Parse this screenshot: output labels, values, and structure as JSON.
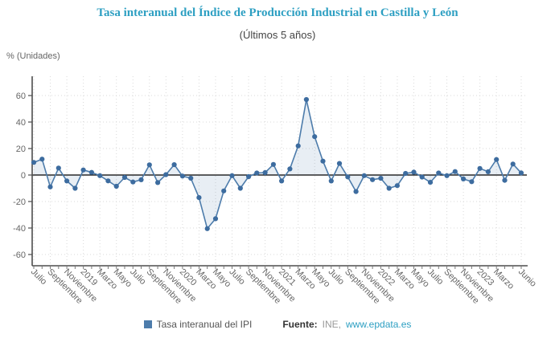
{
  "header": {
    "title": "Tasa interanual del Índice de Producción Industrial en Castilla y León",
    "subtitle": "(Últimos 5 años)"
  },
  "y_axis_unit_label": "% (Unidades)",
  "legend": {
    "series_label": "Tasa interanual del IPI"
  },
  "footer": {
    "source_label": "Fuente:",
    "source_name": "INE,",
    "source_link": "www.epdata.es"
  },
  "colors": {
    "title": "#2d9fc2",
    "subtitle": "#444444",
    "series_line": "#4d7cab",
    "series_point": "#3d6c9f",
    "area_fill": "rgba(69,114,167,0.12)",
    "grid": "#d9d9d9",
    "axis": "#4d4d4d",
    "zero_line": "#000000",
    "tick_text": "#666666",
    "link": "#2d9fc2"
  },
  "chart_data": {
    "type": "area",
    "title": "Tasa interanual del Índice de Producción Industrial en Castilla y León",
    "subtitle": "(Últimos 5 años)",
    "xlabel": "",
    "ylabel": "% (Unidades)",
    "ylim": [
      -70,
      75
    ],
    "y_ticks": [
      60,
      40,
      20,
      0,
      -20,
      -40,
      -60
    ],
    "grid": "dotted",
    "legend_position": "bottom",
    "categories": [
      "Julio 2018",
      "Agosto 2018",
      "Septiembre 2018",
      "Octubre 2018",
      "Noviembre 2018",
      "Diciembre 2018",
      "Enero 2019",
      "Febrero 2019",
      "Marzo 2019",
      "Abril 2019",
      "Mayo 2019",
      "Junio 2019",
      "Julio 2019",
      "Agosto 2019",
      "Septiembre 2019",
      "Octubre 2019",
      "Noviembre 2019",
      "Diciembre 2019",
      "Enero 2020",
      "Febrero 2020",
      "Marzo 2020",
      "Abril 2020",
      "Mayo 2020",
      "Junio 2020",
      "Julio 2020",
      "Agosto 2020",
      "Septiembre 2020",
      "Octubre 2020",
      "Noviembre 2020",
      "Diciembre 2020",
      "Enero 2021",
      "Febrero 2021",
      "Marzo 2021",
      "Abril 2021",
      "Mayo 2021",
      "Junio 2021",
      "Julio 2021",
      "Agosto 2021",
      "Septiembre 2021",
      "Octubre 2021",
      "Noviembre 2021",
      "Diciembre 2021",
      "Enero 2022",
      "Febrero 2022",
      "Marzo 2022",
      "Abril 2022",
      "Mayo 2022",
      "Junio 2022",
      "Julio 2022",
      "Agosto 2022",
      "Septiembre 2022",
      "Octubre 2022",
      "Noviembre 2022",
      "Diciembre 2022",
      "Enero 2023",
      "Febrero 2023",
      "Marzo 2023",
      "Abril 2023",
      "Mayo 2023",
      "Junio 2023"
    ],
    "series": [
      {
        "name": "Tasa interanual del IPI",
        "values": [
          9.5,
          12,
          -9,
          5.3,
          -4.5,
          -10,
          3.8,
          2,
          -0.5,
          -4.4,
          -8.5,
          -1.8,
          -5.3,
          -3.6,
          7.7,
          -5.7,
          0.3,
          7.8,
          -0.8,
          -2.4,
          -17,
          -40.5,
          -33,
          -12,
          -0.5,
          -10,
          -1.2,
          1.5,
          1.8,
          8,
          -4.5,
          4.6,
          22,
          57,
          29,
          10.5,
          -4.5,
          8.7,
          -1.4,
          -12.5,
          -0.5,
          -3.5,
          -2.5,
          -10,
          -8,
          1.2,
          2.2,
          -1.5,
          -5.5,
          1.5,
          -0.5,
          2.6,
          -3,
          -5,
          5,
          2.5,
          11.7,
          -4,
          8.3,
          1.6
        ]
      }
    ],
    "x_tick_labels": [
      {
        "i": 0,
        "label": "Julio"
      },
      {
        "i": 2,
        "label": "Septiembre"
      },
      {
        "i": 4,
        "label": "Noviembre"
      },
      {
        "i": 6,
        "label": "2019"
      },
      {
        "i": 8,
        "label": "Marzo"
      },
      {
        "i": 10,
        "label": "Mayo"
      },
      {
        "i": 12,
        "label": "Julio"
      },
      {
        "i": 14,
        "label": "Septiembre"
      },
      {
        "i": 16,
        "label": "Noviembre"
      },
      {
        "i": 18,
        "label": "2020"
      },
      {
        "i": 20,
        "label": "Marzo"
      },
      {
        "i": 22,
        "label": "Mayo"
      },
      {
        "i": 24,
        "label": "Julio"
      },
      {
        "i": 26,
        "label": "Septiembre"
      },
      {
        "i": 28,
        "label": "Noviembre"
      },
      {
        "i": 30,
        "label": "2021"
      },
      {
        "i": 32,
        "label": "Marzo"
      },
      {
        "i": 34,
        "label": "Mayo"
      },
      {
        "i": 36,
        "label": "Julio"
      },
      {
        "i": 38,
        "label": "Septiembre"
      },
      {
        "i": 40,
        "label": "Noviembre"
      },
      {
        "i": 42,
        "label": "2022"
      },
      {
        "i": 44,
        "label": "Marzo"
      },
      {
        "i": 46,
        "label": "Mayo"
      },
      {
        "i": 48,
        "label": "Julio"
      },
      {
        "i": 50,
        "label": "Septiembre"
      },
      {
        "i": 52,
        "label": "Noviembre"
      },
      {
        "i": 54,
        "label": "2023"
      },
      {
        "i": 56,
        "label": "Marzo"
      },
      {
        "i": 59,
        "label": "Junio"
      }
    ]
  }
}
